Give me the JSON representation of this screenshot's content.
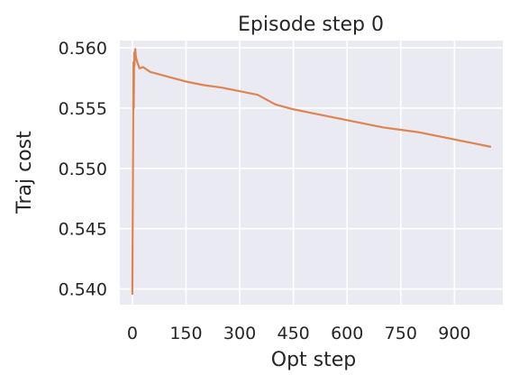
{
  "chart_data": {
    "type": "line",
    "title": "Episode step 0",
    "xlabel": "Opt step",
    "ylabel": "Traj cost",
    "xlim": [
      -35,
      1035
    ],
    "ylim": [
      0.5387,
      0.5606
    ],
    "xticks": [
      0,
      150,
      300,
      450,
      600,
      750,
      900
    ],
    "xtick_labels": [
      "0",
      "150",
      "300",
      "450",
      "600",
      "750",
      "900"
    ],
    "yticks": [
      0.54,
      0.545,
      0.55,
      0.555,
      0.56
    ],
    "ytick_labels": [
      "0.540",
      "0.545",
      "0.550",
      "0.555",
      "0.560"
    ],
    "grid": true,
    "background": "#eaeaf2",
    "grid_color": "#ffffff",
    "series": [
      {
        "color": "#dd8452",
        "x": [
          0,
          1,
          2,
          3,
          4,
          5,
          6,
          8,
          10,
          14,
          20,
          30,
          50,
          75,
          100,
          150,
          200,
          250,
          300,
          350,
          400,
          450,
          500,
          550,
          600,
          650,
          700,
          750,
          800,
          850,
          900,
          950,
          1000
        ],
        "y": [
          0.5396,
          0.546,
          0.552,
          0.5588,
          0.555,
          0.5596,
          0.5585,
          0.5599,
          0.5592,
          0.5588,
          0.5583,
          0.5584,
          0.558,
          0.5578,
          0.5576,
          0.5572,
          0.5569,
          0.5567,
          0.5564,
          0.5561,
          0.5553,
          0.5549,
          0.5546,
          0.5543,
          0.554,
          0.5537,
          0.5534,
          0.5532,
          0.553,
          0.5527,
          0.5524,
          0.5521,
          0.5518
        ]
      }
    ]
  }
}
